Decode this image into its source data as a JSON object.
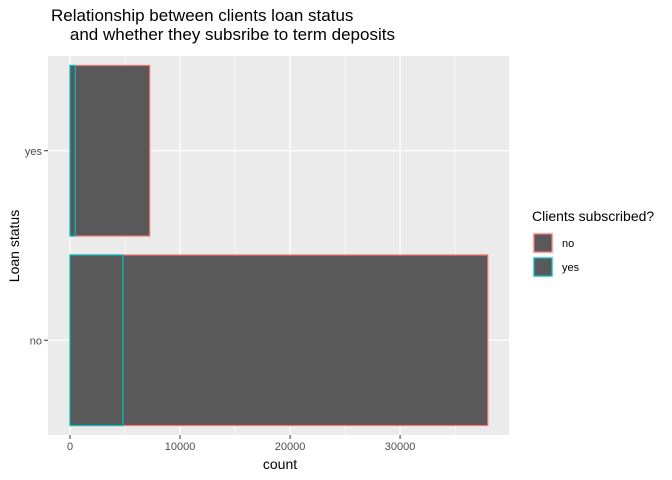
{
  "chart_data": {
    "type": "bar",
    "orientation": "horizontal",
    "stacking": "overlap",
    "title": [
      "Relationship between clients loan status",
      "    and whether they subsribe to term deposits"
    ],
    "xlabel": "count",
    "ylabel": "Loan status",
    "categories": [
      "no",
      "yes"
    ],
    "x_ticks": [
      0,
      10000,
      20000,
      30000
    ],
    "x_tick_labels": [
      "0",
      "10000",
      "20000",
      "30000"
    ],
    "xlim": [
      -2000,
      39900
    ],
    "legend": {
      "title": "Clients subscribed?",
      "position": "right",
      "entries": [
        {
          "label": "no",
          "color": "#F8766D"
        },
        {
          "label": "yes",
          "color": "#00BFC4"
        }
      ]
    },
    "series": [
      {
        "name": "no",
        "outline": "#F8766D",
        "values": [
          37967,
          7244
        ]
      },
      {
        "name": "yes",
        "outline": "#00BFC4",
        "values": [
          4805,
          484
        ]
      }
    ],
    "fill_color": "#595959",
    "panel_background": "#EBEBEB",
    "grid": true
  }
}
